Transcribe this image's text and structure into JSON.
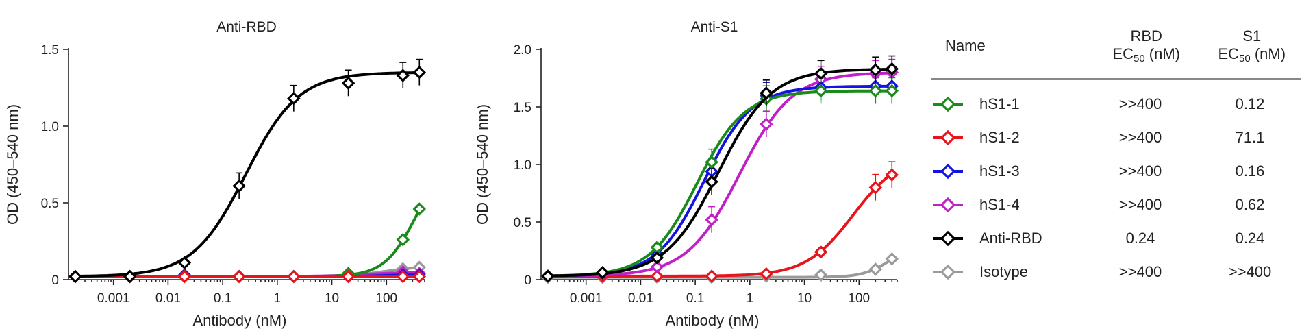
{
  "table": {
    "headers": {
      "name": "Name",
      "rbd_top": "RBD",
      "s1_top": "S1",
      "ec": "EC",
      "ec_sub": "50",
      "ec_unit": " (nM)"
    },
    "rows": [
      {
        "name": "hS1-1",
        "color": "#1a8a1a",
        "rbd": ">>400",
        "s1": "0.12"
      },
      {
        "name": "hS1-2",
        "color": "#e8141c",
        "rbd": ">>400",
        "s1": "71.1"
      },
      {
        "name": "hS1-3",
        "color": "#1414e0",
        "rbd": ">>400",
        "s1": "0.16"
      },
      {
        "name": "hS1-4",
        "color": "#c020c8",
        "rbd": ">>400",
        "s1": "0.62"
      },
      {
        "name": "Anti-RBD",
        "color": "#000000",
        "rbd": "0.24",
        "s1": "0.24"
      },
      {
        "name": "Isotype",
        "color": "#9a9a9a",
        "rbd": ">>400",
        "s1": ">>400"
      }
    ]
  },
  "chart_data": [
    {
      "type": "line",
      "title": "Anti-RBD",
      "xlabel": "Antibody (nM)",
      "ylabel": "OD (450–540 nm)",
      "xscale": "log",
      "xlim": [
        0.00015,
        500
      ],
      "ylim": [
        0,
        1.5
      ],
      "xticks": [
        0.001,
        0.01,
        0.1,
        1,
        10,
        100
      ],
      "xtick_labels": [
        "0.001",
        "0.01",
        "0.1",
        "1",
        "10",
        "100"
      ],
      "yticks": [
        0,
        0.5,
        1.0,
        1.5
      ],
      "ytick_labels": [
        "0",
        "0.5",
        "1.0",
        "1.5"
      ],
      "x": [
        0.0002,
        0.002,
        0.02,
        0.2,
        2,
        20,
        200,
        400
      ],
      "series": [
        {
          "name": "Isotype",
          "color": "#9a9a9a",
          "values": [
            0.02,
            0.02,
            0.02,
            0.02,
            0.02,
            0.03,
            0.07,
            0.08
          ]
        },
        {
          "name": "hS1-4",
          "color": "#c020c8",
          "values": [
            0.02,
            0.02,
            0.02,
            0.02,
            0.02,
            0.03,
            0.05,
            0.04
          ]
        },
        {
          "name": "hS1-3",
          "color": "#1414e0",
          "values": [
            0.02,
            0.02,
            0.03,
            0.02,
            0.02,
            0.02,
            0.03,
            0.03
          ]
        },
        {
          "name": "hS1-1",
          "color": "#1a8a1a",
          "values": [
            0.02,
            0.02,
            0.02,
            0.02,
            0.02,
            0.04,
            0.26,
            0.46
          ]
        },
        {
          "name": "hS1-2",
          "color": "#e8141c",
          "values": [
            0.02,
            0.02,
            0.02,
            0.02,
            0.02,
            0.02,
            0.02,
            0.02
          ]
        },
        {
          "name": "Anti-RBD",
          "color": "#000000",
          "values": [
            0.02,
            0.02,
            0.11,
            0.61,
            1.18,
            1.28,
            1.33,
            1.35
          ]
        }
      ]
    },
    {
      "type": "line",
      "title": "Anti-S1",
      "xlabel": "Antibody (nM)",
      "ylabel": "OD (450–540 nm)",
      "xscale": "log",
      "xlim": [
        0.00015,
        500
      ],
      "ylim": [
        0,
        2.0
      ],
      "xticks": [
        0.001,
        0.01,
        0.1,
        1,
        10,
        100
      ],
      "xtick_labels": [
        "0.001",
        "0.01",
        "0.1",
        "1",
        "10",
        "100"
      ],
      "yticks": [
        0,
        0.5,
        1.0,
        1.5,
        2.0
      ],
      "ytick_labels": [
        "0",
        "0.5",
        "1.0",
        "1.5",
        "2.0"
      ],
      "x": [
        0.0002,
        0.002,
        0.02,
        0.2,
        2,
        20,
        200,
        400
      ],
      "series": [
        {
          "name": "Isotype",
          "color": "#9a9a9a",
          "values": [
            0.02,
            0.02,
            0.02,
            0.02,
            0.03,
            0.04,
            0.09,
            0.18
          ]
        },
        {
          "name": "hS1-2",
          "color": "#e8141c",
          "values": [
            0.03,
            0.03,
            0.03,
            0.03,
            0.05,
            0.24,
            0.8,
            0.91
          ]
        },
        {
          "name": "hS1-4",
          "color": "#c020c8",
          "values": [
            0.03,
            0.05,
            0.11,
            0.52,
            1.35,
            1.74,
            1.79,
            1.8
          ]
        },
        {
          "name": "hS1-3",
          "color": "#1414e0",
          "values": [
            0.03,
            0.06,
            0.22,
            0.94,
            1.6,
            1.67,
            1.68,
            1.68
          ]
        },
        {
          "name": "hS1-1",
          "color": "#1a8a1a",
          "values": [
            0.03,
            0.06,
            0.28,
            1.02,
            1.57,
            1.64,
            1.64,
            1.64
          ]
        },
        {
          "name": "Anti-RBD",
          "color": "#000000",
          "values": [
            0.03,
            0.06,
            0.19,
            0.85,
            1.62,
            1.79,
            1.82,
            1.83
          ]
        }
      ]
    }
  ]
}
